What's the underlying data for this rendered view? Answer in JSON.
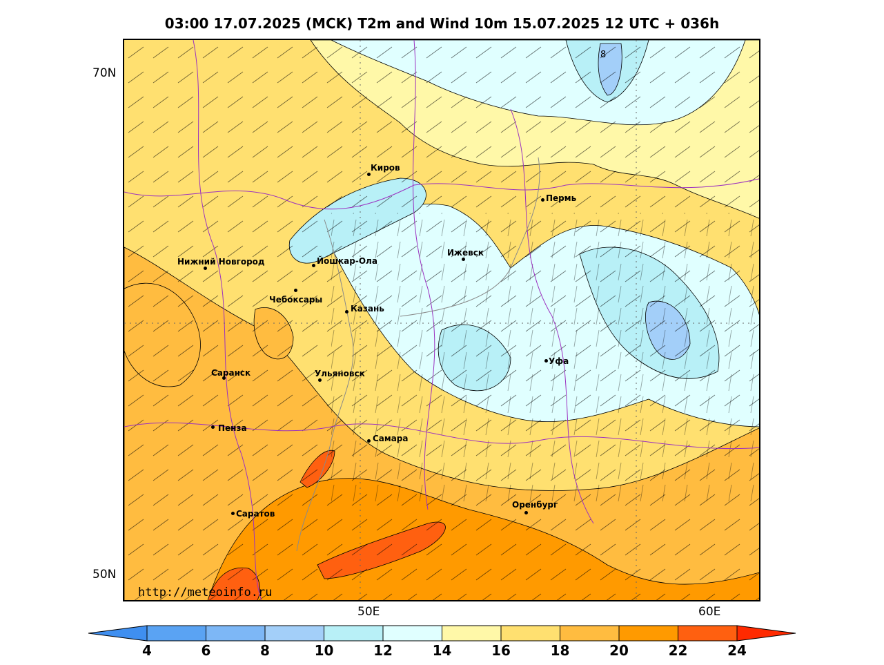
{
  "title": "03:00 17.07.2025 (MCK) T2m and Wind 10m 15.07.2025 12 UTC + 036h",
  "axes": {
    "lat_labels": [
      "70N",
      "50N"
    ],
    "lon_labels": [
      "50E",
      "60E"
    ]
  },
  "watermark": "http://meteoinfo.ru",
  "contour_label": "8",
  "cities": [
    {
      "name": "Киров"
    },
    {
      "name": "Пермь"
    },
    {
      "name": "Нижний Новгород"
    },
    {
      "name": "Йошкар-Ола"
    },
    {
      "name": "Ижевск"
    },
    {
      "name": "Чебоксары"
    },
    {
      "name": "Казань"
    },
    {
      "name": "Уфа"
    },
    {
      "name": "Саранск"
    },
    {
      "name": "Ульяновск"
    },
    {
      "name": "Пенза"
    },
    {
      "name": "Самара"
    },
    {
      "name": "Оренбург"
    },
    {
      "name": "Саратов"
    }
  ],
  "colorbar": {
    "ticks": [
      "4",
      "6",
      "8",
      "10",
      "12",
      "14",
      "16",
      "18",
      "20",
      "22",
      "24"
    ],
    "colors": [
      "#3f8ff0",
      "#5aa3f3",
      "#7db7f6",
      "#a3cff9",
      "#b8f0f7",
      "#e0ffff",
      "#fff8a8",
      "#ffe070",
      "#ffbc40",
      "#ff9a00",
      "#ff6010",
      "#ff2a00"
    ]
  }
}
